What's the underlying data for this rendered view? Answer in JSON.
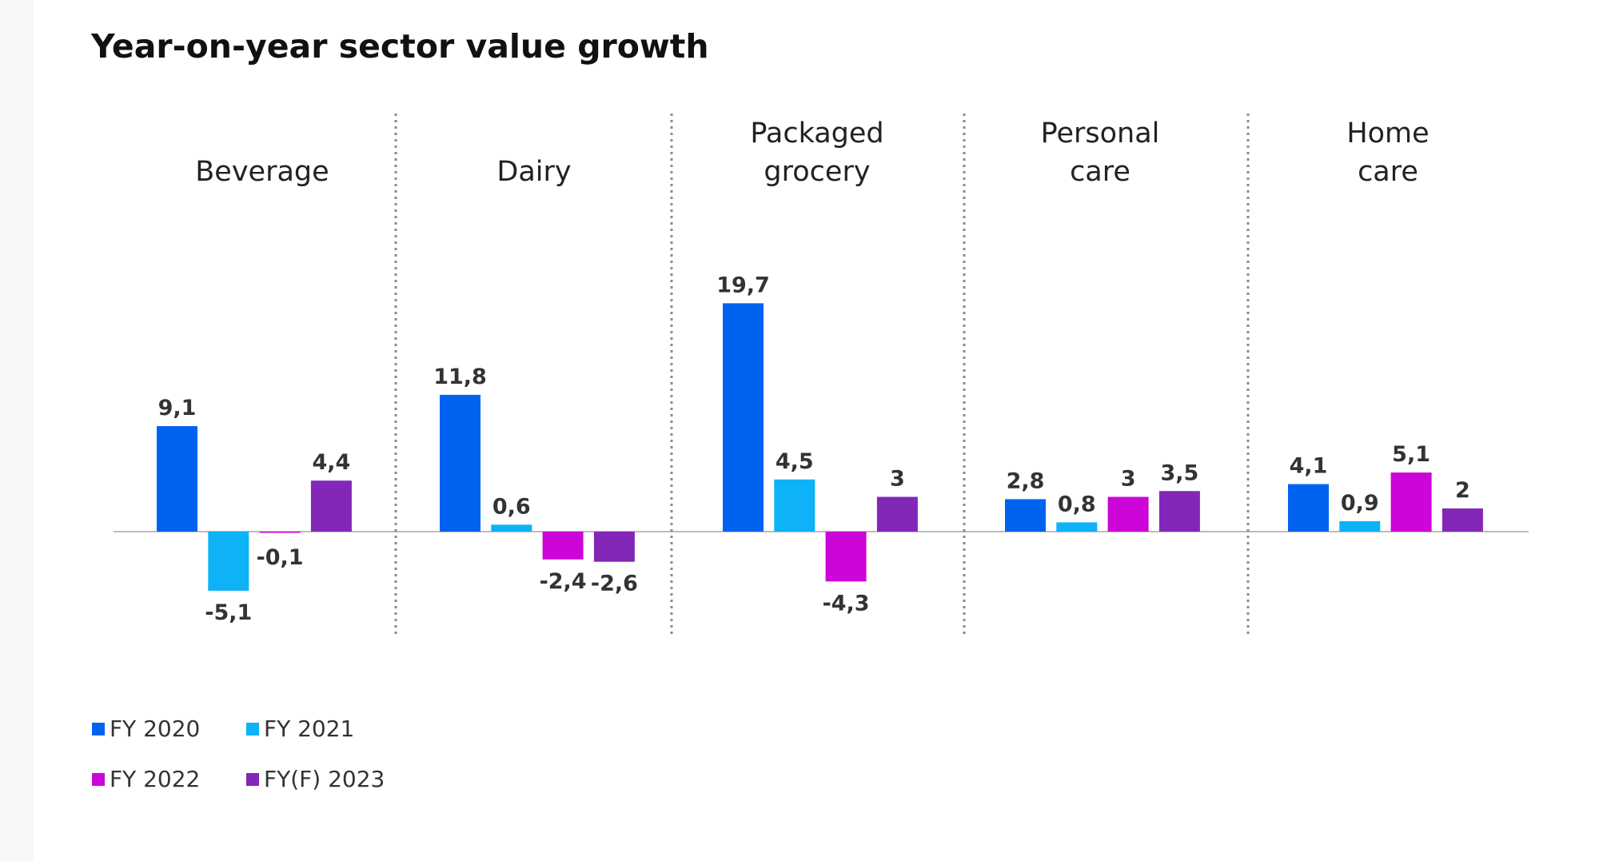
{
  "chart_data": {
    "type": "bar",
    "title": "Year-on-year sector value growth",
    "xlabel": "",
    "ylabel": "",
    "categories": [
      [
        "Beverage"
      ],
      [
        "Dairy"
      ],
      [
        "Packaged",
        "grocery"
      ],
      [
        "Personal",
        "care"
      ],
      [
        "Home",
        "care"
      ]
    ],
    "series": [
      {
        "name": "FY 2020",
        "color": "#0063f0",
        "values": [
          9.1,
          11.8,
          19.7,
          2.8,
          4.1
        ],
        "labels": [
          "9,1",
          "11,8",
          "19,7",
          "2,8",
          "4,1"
        ]
      },
      {
        "name": "FY 2021",
        "color": "#0db2f7",
        "values": [
          -5.1,
          0.6,
          4.5,
          0.8,
          0.9
        ],
        "labels": [
          "-5,1",
          "0,6",
          "4,5",
          "0,8",
          "0,9"
        ]
      },
      {
        "name": "FY 2022",
        "color": "#cc06d8",
        "values": [
          -0.1,
          -2.4,
          -4.3,
          3,
          5.1
        ],
        "labels": [
          "-0,1",
          "-2,4",
          "-4,3",
          "3",
          "5,1"
        ]
      },
      {
        "name": "FY(F) 2023",
        "color": "#8227b8",
        "values": [
          4.4,
          -2.6,
          3,
          3.5,
          2
        ],
        "labels": [
          "4,4",
          "-2,6",
          "3",
          "3,5",
          "2"
        ]
      }
    ],
    "grid": false,
    "legend_position": "bottom-left",
    "category_separators": "dotted"
  }
}
